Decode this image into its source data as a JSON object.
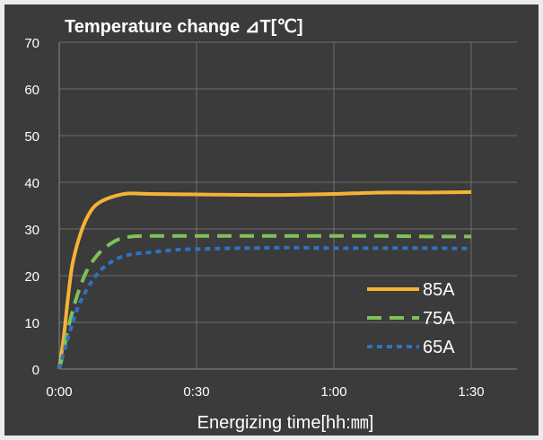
{
  "chart_data": {
    "type": "line",
    "title": "Temperature change ⊿T[℃]",
    "xlabel": "Energizing time[hh:㎜]",
    "ylabel": "",
    "x_unit": "minutes",
    "xlim": [
      0,
      100
    ],
    "ylim": [
      0,
      70
    ],
    "x_ticks": [
      {
        "value": 0,
        "label": "0:00"
      },
      {
        "value": 30,
        "label": "0:30"
      },
      {
        "value": 60,
        "label": "1:00"
      },
      {
        "value": 90,
        "label": "1:30"
      }
    ],
    "y_ticks": [
      0,
      10,
      20,
      30,
      40,
      50,
      60,
      70
    ],
    "grid": true,
    "legend_position": "bottom-right",
    "series": [
      {
        "name": "85A",
        "color": "#f5b335",
        "dash": "solid",
        "points": [
          [
            0,
            0
          ],
          [
            1,
            7
          ],
          [
            2,
            16
          ],
          [
            3,
            23
          ],
          [
            5,
            30
          ],
          [
            7,
            34
          ],
          [
            9,
            35.8
          ],
          [
            12,
            37
          ],
          [
            15,
            37.6
          ],
          [
            20,
            37.5
          ],
          [
            30,
            37.4
          ],
          [
            40,
            37.3
          ],
          [
            50,
            37.3
          ],
          [
            60,
            37.5
          ],
          [
            70,
            37.8
          ],
          [
            80,
            37.8
          ],
          [
            90,
            37.9
          ]
        ]
      },
      {
        "name": "75A",
        "color": "#7ec15a",
        "dash": "long",
        "points": [
          [
            0,
            0
          ],
          [
            1,
            4
          ],
          [
            2,
            9
          ],
          [
            4,
            16
          ],
          [
            6,
            21
          ],
          [
            8,
            24
          ],
          [
            10,
            26
          ],
          [
            13,
            27.8
          ],
          [
            16,
            28.4
          ],
          [
            20,
            28.5
          ],
          [
            30,
            28.5
          ],
          [
            40,
            28.5
          ],
          [
            50,
            28.5
          ],
          [
            60,
            28.5
          ],
          [
            70,
            28.5
          ],
          [
            80,
            28.4
          ],
          [
            90,
            28.4
          ]
        ]
      },
      {
        "name": "65A",
        "color": "#2f72c0",
        "dash": "short",
        "points": [
          [
            0,
            0
          ],
          [
            2,
            7
          ],
          [
            4,
            13
          ],
          [
            6,
            17
          ],
          [
            8,
            20
          ],
          [
            10,
            22
          ],
          [
            13,
            23.8
          ],
          [
            16,
            24.6
          ],
          [
            20,
            25
          ],
          [
            25,
            25.5
          ],
          [
            30,
            25.7
          ],
          [
            40,
            25.9
          ],
          [
            50,
            26
          ],
          [
            60,
            25.9
          ],
          [
            70,
            25.9
          ],
          [
            80,
            25.9
          ],
          [
            90,
            25.8
          ]
        ]
      }
    ]
  }
}
